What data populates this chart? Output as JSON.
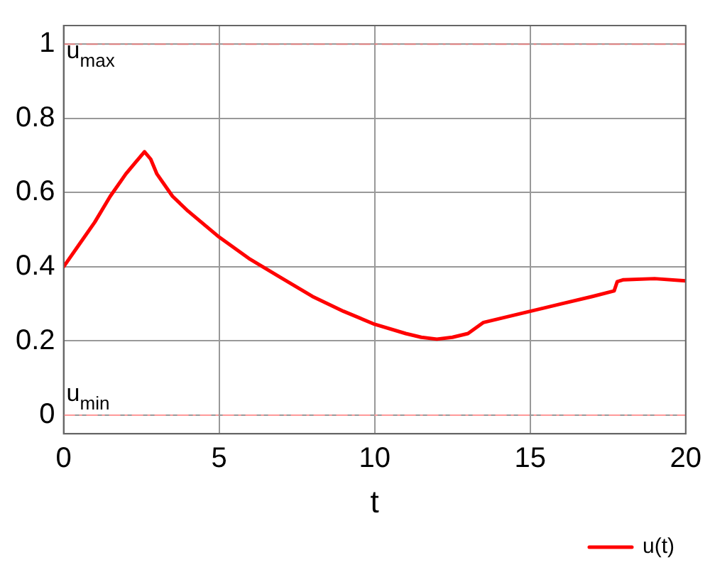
{
  "chart_data": {
    "type": "line",
    "xlabel": "t",
    "xlim": [
      0,
      20
    ],
    "xticks": [
      0,
      5,
      10,
      15,
      20
    ],
    "ylim": [
      -0.05,
      1.05
    ],
    "yticks": [
      0,
      0.2,
      0.4,
      0.6,
      0.8,
      1
    ],
    "grid": true,
    "legend": "bottom right",
    "marker": "none",
    "line_style": "solid",
    "ref_lines": [
      {
        "axis": "y",
        "value": 1,
        "label": "u$_{max}$",
        "color": "#e08080",
        "line_style": "dashdot"
      },
      {
        "axis": "y",
        "value": 0,
        "label": "u$_{min}$",
        "color": "#ff9999",
        "line_style": "dashdot"
      }
    ],
    "series": [
      {
        "name": "u(t)",
        "color": "#ff0000",
        "x": [
          0,
          0.5,
          1,
          1.5,
          2,
          2.3,
          2.6,
          2.8,
          3,
          3.5,
          4,
          5,
          6,
          7,
          8,
          9,
          10,
          11,
          11.5,
          12,
          12.5,
          13,
          13.5,
          14,
          15,
          16,
          17,
          17.7,
          17.8,
          18,
          19,
          20
        ],
        "values": [
          0.4,
          0.46,
          0.52,
          0.59,
          0.65,
          0.68,
          0.71,
          0.69,
          0.65,
          0.59,
          0.55,
          0.48,
          0.42,
          0.37,
          0.32,
          0.28,
          0.245,
          0.22,
          0.21,
          0.205,
          0.21,
          0.22,
          0.25,
          0.26,
          0.28,
          0.3,
          0.32,
          0.335,
          0.36,
          0.365,
          0.368,
          0.362
        ]
      }
    ]
  }
}
